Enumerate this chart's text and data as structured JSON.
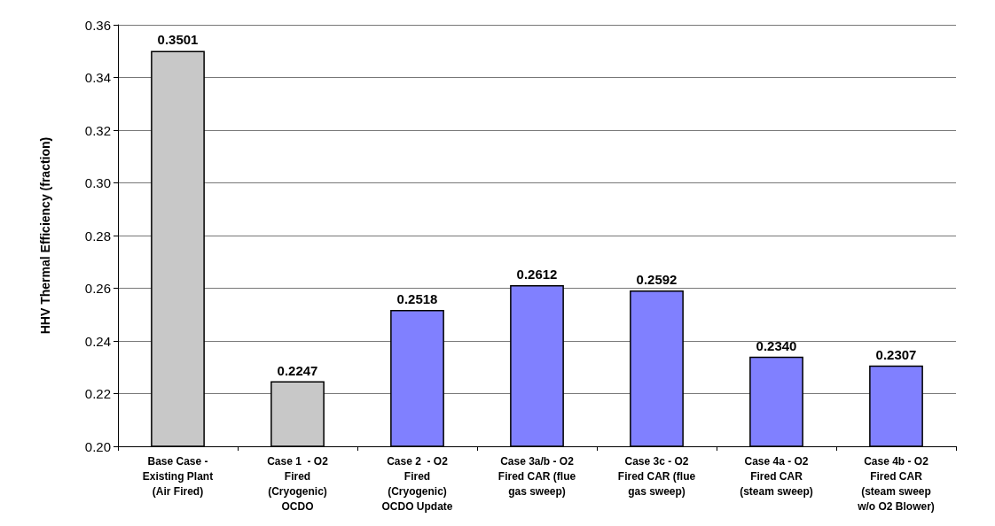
{
  "chart_data": {
    "type": "bar",
    "ylabel": "HHV Thermal Efficiency (fraction)",
    "categories": [
      "Base Case -\nExisting Plant\n(Air Fired)",
      "Case 1  - O2\nFired\n(Cryogenic)\nOCDO",
      "Case 2  - O2\nFired\n(Cryogenic)\nOCDO Update",
      "Case 3a/b - O2\nFired CAR (flue\ngas sweep)",
      "Case 3c - O2\nFired CAR (flue\ngas sweep)",
      "Case 4a - O2\nFired CAR\n(steam sweep)",
      "Case 4b - O2\nFired CAR\n(steam sweep\nw/o O2 Blower)"
    ],
    "values": [
      0.3501,
      0.2247,
      0.2518,
      0.2612,
      0.2592,
      0.234,
      0.2307
    ],
    "value_labels": [
      "0.3501",
      "0.2247",
      "0.2518",
      "0.2612",
      "0.2592",
      "0.2340",
      "0.2307"
    ],
    "colors": [
      "#c8c8c8",
      "#c8c8c8",
      "#8080ff",
      "#8080ff",
      "#8080ff",
      "#8080ff",
      "#8080ff"
    ],
    "ylim": [
      0.2,
      0.36
    ],
    "yticks": [
      {
        "value": 0.2,
        "label": "0.20"
      },
      {
        "value": 0.22,
        "label": "0.22"
      },
      {
        "value": 0.24,
        "label": "0.24"
      },
      {
        "value": 0.26,
        "label": "0.26"
      },
      {
        "value": 0.28,
        "label": "0.28"
      },
      {
        "value": 0.3,
        "label": "0.30"
      },
      {
        "value": 0.32,
        "label": "0.32"
      },
      {
        "value": 0.34,
        "label": "0.34"
      },
      {
        "value": 0.36,
        "label": "0.36"
      }
    ],
    "grid": "y"
  }
}
